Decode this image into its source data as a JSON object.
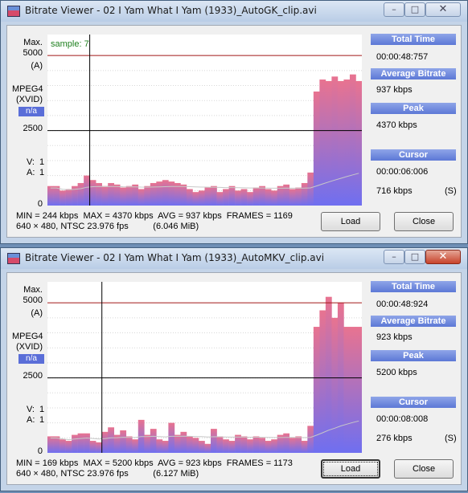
{
  "colors": {
    "bar_top": "#e87390",
    "bar_bottom": "#6f6ff0",
    "limit_line": "#a01818",
    "cursor_line": "#000000"
  },
  "windows": [
    {
      "title": "Bitrate Viewer - 02 I Yam What I Yam (1933)_AutoGK_clip.avi",
      "left_labels": {
        "max": "Max.",
        "max_value": "5000",
        "max_unit": "(A)",
        "codec": "MPEG4",
        "codec2": "(XVID)",
        "badge": "n/a",
        "mid_value": "2500",
        "v": "V:",
        "v_val": "1",
        "a": "A:",
        "a_val": "1",
        "zero": "0"
      },
      "sample_label": "sample: 7",
      "panel": {
        "total_time_label": "Total Time",
        "total_time": "00:00:48:757",
        "avg_label": "Average Bitrate",
        "avg": "937 kbps",
        "peak_label": "Peak",
        "peak": "4370 kbps",
        "cursor_label": "Cursor",
        "cursor_time": "00:00:06:006",
        "cursor_rate": "716 kbps",
        "cursor_unit": "(S)"
      },
      "stats_line1": "MIN = 244 kbps  MAX = 4370 kbps  AVG = 937 kbps  FRAMES = 1169",
      "stats_line2": "640 × 480, NTSC 23.976 fps          (6.046 MiB)",
      "load_label": "Load",
      "close_label": "Close",
      "window_controls": {
        "minimize": "–",
        "maximize": "□",
        "close": "✕"
      },
      "chart_data": {
        "type": "bar",
        "title": "",
        "xlabel": "",
        "ylabel": "",
        "ylim": [
          0,
          5700
        ],
        "max_line": 5000,
        "ref_line": 2500,
        "cursor_sample": 7,
        "values": [
          650,
          650,
          500,
          550,
          650,
          750,
          1000,
          850,
          750,
          650,
          750,
          700,
          600,
          650,
          700,
          550,
          650,
          750,
          800,
          850,
          800,
          750,
          700,
          550,
          450,
          500,
          600,
          650,
          450,
          550,
          650,
          500,
          550,
          450,
          600,
          650,
          550,
          500,
          650,
          700,
          550,
          600,
          750,
          1100,
          3800,
          4200,
          4150,
          4300,
          4150,
          4200,
          4370,
          4150
        ]
      }
    },
    {
      "title": "Bitrate Viewer - 02 I Yam What I Yam (1933)_AutoMKV_clip.avi",
      "left_labels": {
        "max": "Max.",
        "max_value": "5000",
        "max_unit": "(A)",
        "codec": "MPEG4",
        "codec2": "(XVID)",
        "badge": "n/a",
        "mid_value": "2500",
        "v": "V:",
        "v_val": "1",
        "a": "A:",
        "a_val": "1",
        "zero": "0"
      },
      "sample_label": "",
      "panel": {
        "total_time_label": "Total Time",
        "total_time": "00:00:48:924",
        "avg_label": "Average Bitrate",
        "avg": "923 kbps",
        "peak_label": "Peak",
        "peak": "5200 kbps",
        "cursor_label": "Cursor",
        "cursor_time": "00:00:08:008",
        "cursor_rate": "276 kbps",
        "cursor_unit": "(S)"
      },
      "stats_line1": "MIN = 169 kbps  MAX = 5200 kbps  AVG = 923 kbps  FRAMES = 1173",
      "stats_line2": "640 × 480, NTSC 23.976 fps          (6.127 MiB)",
      "load_label": "Load",
      "close_label": "Close",
      "window_controls": {
        "minimize": "–",
        "maximize": "□",
        "close": "✕"
      },
      "chart_data": {
        "type": "bar",
        "title": "",
        "xlabel": "",
        "ylabel": "",
        "ylim": [
          0,
          5700
        ],
        "max_line": 5000,
        "ref_line": 2500,
        "cursor_sample": 9,
        "values": [
          550,
          550,
          450,
          400,
          600,
          650,
          650,
          400,
          350,
          700,
          850,
          600,
          750,
          550,
          450,
          1100,
          600,
          800,
          450,
          400,
          1000,
          600,
          700,
          550,
          500,
          400,
          300,
          800,
          550,
          450,
          400,
          600,
          550,
          450,
          550,
          500,
          400,
          450,
          600,
          650,
          500,
          550,
          400,
          900,
          4200,
          4750,
          5200,
          4500,
          5000,
          4200,
          4200,
          4200
        ]
      }
    }
  ]
}
